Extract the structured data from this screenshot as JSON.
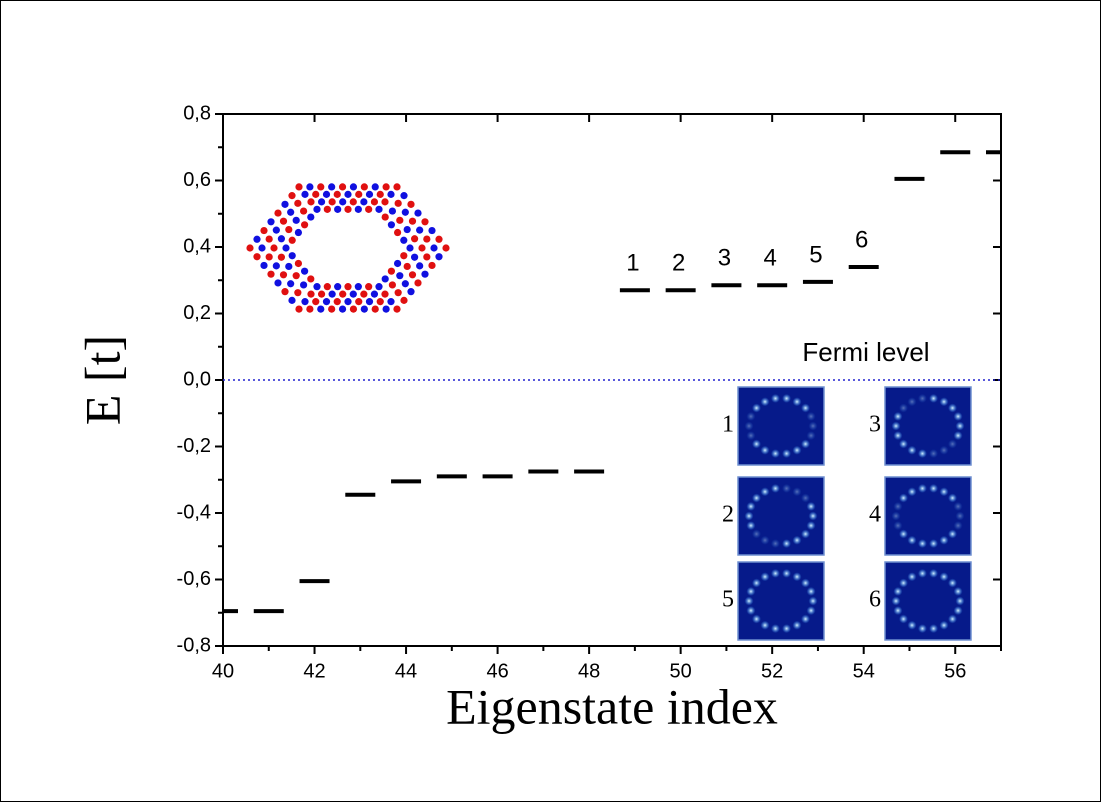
{
  "chart_data": {
    "type": "scatter",
    "marker": "hline",
    "xlabel": "Eigenstate index",
    "ylabel": "E [t]",
    "xlim": [
      40,
      57
    ],
    "ylim": [
      -0.8,
      0.8
    ],
    "xticks": [
      40,
      42,
      44,
      46,
      48,
      50,
      52,
      54,
      56
    ],
    "yticks": [
      {
        "value": -0.8,
        "label": "-0,8"
      },
      {
        "value": -0.6,
        "label": "-0,6"
      },
      {
        "value": -0.4,
        "label": "-0,4"
      },
      {
        "value": -0.2,
        "label": "-0,2"
      },
      {
        "value": 0.0,
        "label": "0,0"
      },
      {
        "value": 0.2,
        "label": "0,2"
      },
      {
        "value": 0.4,
        "label": "0,4"
      },
      {
        "value": 0.6,
        "label": "0,6"
      },
      {
        "value": 0.8,
        "label": "0,8"
      }
    ],
    "series": [
      {
        "color": "#000000",
        "x": [
          40,
          41,
          42,
          43,
          44,
          45,
          46,
          47,
          48,
          49,
          50,
          51,
          52,
          53,
          54,
          55,
          56,
          57
        ],
        "values": [
          -0.695,
          -0.695,
          -0.605,
          -0.345,
          -0.305,
          -0.29,
          -0.29,
          -0.275,
          -0.275,
          0.27,
          0.27,
          0.285,
          0.285,
          0.295,
          0.34,
          0.605,
          0.685,
          0.685
        ]
      }
    ],
    "fermi_level": 0,
    "fermi_label": "Fermi level",
    "annotations": [
      {
        "text": "1",
        "x": 49
      },
      {
        "text": "2",
        "x": 50
      },
      {
        "text": "3",
        "x": 51
      },
      {
        "text": "4",
        "x": 52
      },
      {
        "text": "5",
        "x": 53
      },
      {
        "text": "6",
        "x": 54
      }
    ],
    "insets": [
      "1",
      "2",
      "3",
      "4",
      "5",
      "6"
    ]
  }
}
